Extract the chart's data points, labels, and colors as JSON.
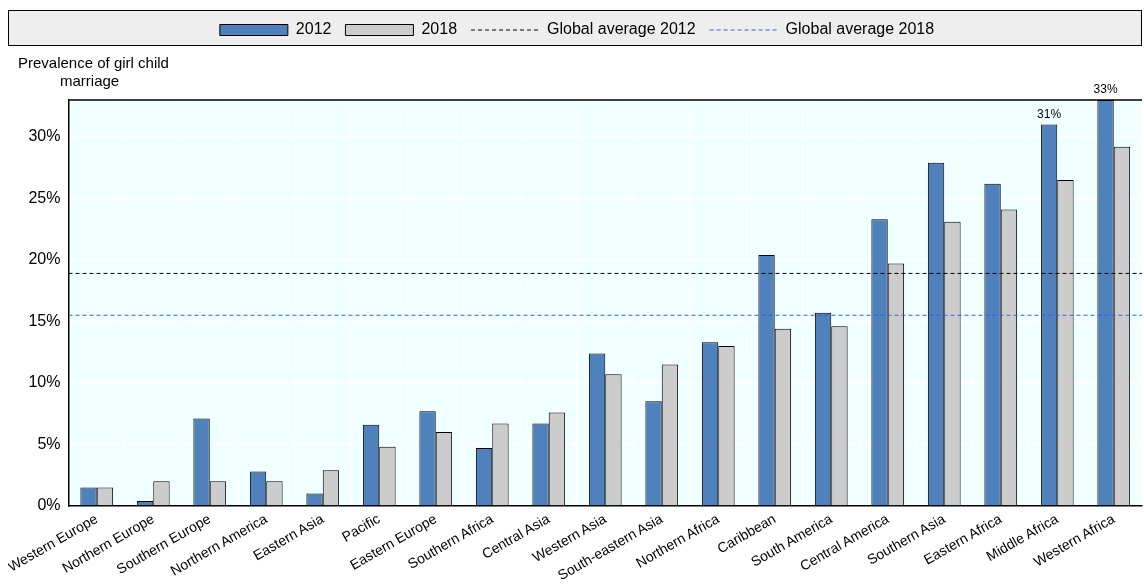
{
  "chart_data": {
    "type": "bar",
    "ylabel": "Prevalence of girl child marriage",
    "categories": [
      "Western Europe",
      "Northern Europe",
      "Southern Europe",
      "Northern America",
      "Eastern Asia",
      "Pacific",
      "Eastern Europe",
      "Southern Africa",
      "Central Asia",
      "Western Asia",
      "South-eastern Asia",
      "Northern Africa",
      "Caribbean",
      "South America",
      "Central America",
      "Southern Asia",
      "Eastern Africa",
      "Middle Africa",
      "Western Africa"
    ],
    "series": [
      {
        "name": "2012",
        "color": "#4f81bd",
        "values": [
          1.5,
          0.4,
          7.1,
          2.8,
          1.0,
          6.6,
          7.7,
          4.7,
          6.7,
          12.4,
          8.5,
          13.3,
          20.4,
          15.7,
          23.3,
          27.9,
          26.2,
          31,
          33
        ],
        "value_labels": [
          null,
          null,
          null,
          null,
          null,
          null,
          null,
          null,
          null,
          null,
          null,
          null,
          null,
          null,
          null,
          null,
          null,
          "31%",
          "33%"
        ]
      },
      {
        "name": "2018",
        "color": "#cccccc",
        "values": [
          1.5,
          2.0,
          2.0,
          2.0,
          2.9,
          4.8,
          6.0,
          6.7,
          7.6,
          10.7,
          11.5,
          13.0,
          14.4,
          14.6,
          19.7,
          23.1,
          24.1,
          26.5,
          29.2
        ]
      }
    ],
    "ylim": [
      0,
      33
    ],
    "yticks": [
      {
        "value": 0,
        "label": "0%"
      },
      {
        "value": 5,
        "label": "5%"
      },
      {
        "value": 10,
        "label": "10%"
      },
      {
        "value": 15,
        "label": "15%"
      },
      {
        "value": 20,
        "label": "20%"
      },
      {
        "value": 25,
        "label": "25%"
      },
      {
        "value": 30,
        "label": "30%"
      }
    ],
    "ref_lines": [
      {
        "axis": "y",
        "value": 18.9,
        "label": "Global average 2012",
        "color": "#000000",
        "line_style": "dashed"
      },
      {
        "axis": "y",
        "value": 15.5,
        "label": "Global average 2018",
        "color": "#3a5fcd",
        "line_style": "dashed"
      }
    ],
    "grid": true,
    "legend": "top"
  }
}
